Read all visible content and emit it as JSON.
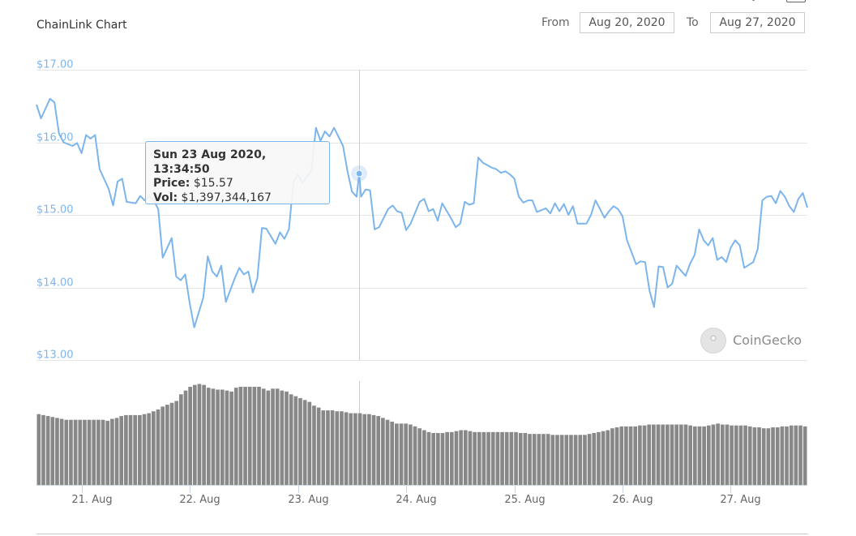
{
  "header": {
    "title": "ChainLink Chart",
    "from_label": "From",
    "from_value": "Aug 20, 2020",
    "to_label": "To",
    "to_value": "Aug 27, 2020"
  },
  "tooltip": {
    "date": "Sun 23 Aug 2020, 13:34:50",
    "price_label": "Price:",
    "price_value": "$15.57",
    "vol_label": "Vol:",
    "vol_value": "$1,397,344,167"
  },
  "watermark": {
    "text": "CoinGecko"
  },
  "colors": {
    "line": "#7cb5ec",
    "volume": "#888888",
    "grid": "#e6e6e6",
    "axis_label": "#7cb5ec"
  },
  "chart_data": {
    "type": "line",
    "title": "ChainLink Chart",
    "x_range": [
      "2020-08-20T14:00",
      "2020-08-27T17:00"
    ],
    "ylim": [
      13,
      17
    ],
    "y_ticks": [
      "$13.00",
      "$14.00",
      "$15.00",
      "$16.00",
      "$17.00"
    ],
    "y_tick_values": [
      13,
      14,
      15,
      16,
      17
    ],
    "x_tick_labels": [
      "21. Aug",
      "22. Aug",
      "23. Aug",
      "24. Aug",
      "25. Aug",
      "26. Aug",
      "27. Aug"
    ],
    "x_tick_dates": [
      "2020-08-21",
      "2020-08-22",
      "2020-08-23",
      "2020-08-24",
      "2020-08-25",
      "2020-08-26",
      "2020-08-27"
    ],
    "grid": true,
    "crosshair_time": "2020-08-23T13:34:50",
    "highlight_price": 15.57,
    "price_series": [
      [
        "2020-08-20T14:00",
        16.52
      ],
      [
        "2020-08-20T15:00",
        16.33
      ],
      [
        "2020-08-20T17:00",
        16.6
      ],
      [
        "2020-08-20T18:00",
        16.55
      ],
      [
        "2020-08-20T19:00",
        16.12
      ],
      [
        "2020-08-20T20:00",
        16.0
      ],
      [
        "2020-08-20T22:00",
        15.95
      ],
      [
        "2020-08-20T23:00",
        15.99
      ],
      [
        "2020-08-21T00:00",
        15.85
      ],
      [
        "2020-08-21T01:00",
        16.1
      ],
      [
        "2020-08-21T02:00",
        16.05
      ],
      [
        "2020-08-21T03:00",
        16.1
      ],
      [
        "2020-08-21T04:00",
        15.63
      ],
      [
        "2020-08-21T06:00",
        15.36
      ],
      [
        "2020-08-21T07:00",
        15.13
      ],
      [
        "2020-08-21T08:00",
        15.46
      ],
      [
        "2020-08-21T09:00",
        15.5
      ],
      [
        "2020-08-21T10:00",
        15.18
      ],
      [
        "2020-08-21T12:00",
        15.16
      ],
      [
        "2020-08-21T13:00",
        15.26
      ],
      [
        "2020-08-21T14:00",
        15.2
      ],
      [
        "2020-08-21T15:00",
        15.26
      ],
      [
        "2020-08-21T16:00",
        15.2
      ],
      [
        "2020-08-21T17:00",
        15.08
      ],
      [
        "2020-08-21T18:00",
        14.41
      ],
      [
        "2020-08-21T20:00",
        14.68
      ],
      [
        "2020-08-21T21:00",
        14.15
      ],
      [
        "2020-08-21T22:00",
        14.1
      ],
      [
        "2020-08-21T23:00",
        14.18
      ],
      [
        "2020-08-22T00:00",
        13.78
      ],
      [
        "2020-08-22T01:00",
        13.45
      ],
      [
        "2020-08-22T03:00",
        13.86
      ],
      [
        "2020-08-22T04:00",
        14.43
      ],
      [
        "2020-08-22T05:00",
        14.22
      ],
      [
        "2020-08-22T06:00",
        14.15
      ],
      [
        "2020-08-22T07:00",
        14.3
      ],
      [
        "2020-08-22T08:00",
        13.8
      ],
      [
        "2020-08-22T10:00",
        14.13
      ],
      [
        "2020-08-22T11:00",
        14.27
      ],
      [
        "2020-08-22T12:00",
        14.18
      ],
      [
        "2020-08-22T13:00",
        14.22
      ],
      [
        "2020-08-22T14:00",
        13.93
      ],
      [
        "2020-08-22T15:00",
        14.13
      ],
      [
        "2020-08-22T16:00",
        14.82
      ],
      [
        "2020-08-22T17:00",
        14.81
      ],
      [
        "2020-08-22T19:00",
        14.6
      ],
      [
        "2020-08-22T20:00",
        14.76
      ],
      [
        "2020-08-22T21:00",
        14.67
      ],
      [
        "2020-08-22T22:00",
        14.8
      ],
      [
        "2020-08-22T23:00",
        15.45
      ],
      [
        "2020-08-23T00:00",
        15.56
      ],
      [
        "2020-08-23T01:00",
        15.44
      ],
      [
        "2020-08-23T03:00",
        15.62
      ],
      [
        "2020-08-23T04:00",
        16.2
      ],
      [
        "2020-08-23T05:00",
        16.02
      ],
      [
        "2020-08-23T06:00",
        16.15
      ],
      [
        "2020-08-23T07:00",
        16.08
      ],
      [
        "2020-08-23T08:00",
        16.2
      ],
      [
        "2020-08-23T10:00",
        15.95
      ],
      [
        "2020-08-23T11:00",
        15.6
      ],
      [
        "2020-08-23T12:00",
        15.32
      ],
      [
        "2020-08-23T13:00",
        15.25
      ],
      [
        "2020-08-23T13:34:50",
        15.57
      ],
      [
        "2020-08-23T14:00",
        15.25
      ],
      [
        "2020-08-23T15:00",
        15.35
      ],
      [
        "2020-08-23T16:00",
        15.34
      ],
      [
        "2020-08-23T17:00",
        14.8
      ],
      [
        "2020-08-23T18:00",
        14.83
      ],
      [
        "2020-08-23T20:00",
        15.08
      ],
      [
        "2020-08-23T21:00",
        15.13
      ],
      [
        "2020-08-23T22:00",
        15.05
      ],
      [
        "2020-08-23T23:00",
        15.03
      ],
      [
        "2020-08-24T00:00",
        14.79
      ],
      [
        "2020-08-24T01:00",
        14.88
      ],
      [
        "2020-08-24T03:00",
        15.18
      ],
      [
        "2020-08-24T04:00",
        15.22
      ],
      [
        "2020-08-24T05:00",
        15.05
      ],
      [
        "2020-08-24T06:00",
        15.08
      ],
      [
        "2020-08-24T07:00",
        14.92
      ],
      [
        "2020-08-24T08:00",
        15.16
      ],
      [
        "2020-08-24T10:00",
        14.95
      ],
      [
        "2020-08-24T11:00",
        14.83
      ],
      [
        "2020-08-24T12:00",
        14.88
      ],
      [
        "2020-08-24T13:00",
        15.18
      ],
      [
        "2020-08-24T14:00",
        15.14
      ],
      [
        "2020-08-24T15:00",
        15.16
      ],
      [
        "2020-08-24T16:00",
        15.79
      ],
      [
        "2020-08-24T17:00",
        15.72
      ],
      [
        "2020-08-24T19:00",
        15.65
      ],
      [
        "2020-08-24T20:00",
        15.63
      ],
      [
        "2020-08-24T21:00",
        15.58
      ],
      [
        "2020-08-24T22:00",
        15.6
      ],
      [
        "2020-08-24T23:00",
        15.56
      ],
      [
        "2020-08-25T00:00",
        15.5
      ],
      [
        "2020-08-25T01:00",
        15.25
      ],
      [
        "2020-08-25T02:00",
        15.17
      ],
      [
        "2020-08-25T03:00",
        15.2
      ],
      [
        "2020-08-25T04:00",
        15.2
      ],
      [
        "2020-08-25T05:00",
        15.04
      ],
      [
        "2020-08-25T07:00",
        15.09
      ],
      [
        "2020-08-25T08:00",
        15.02
      ],
      [
        "2020-08-25T09:00",
        15.16
      ],
      [
        "2020-08-25T10:00",
        15.05
      ],
      [
        "2020-08-25T11:00",
        15.15
      ],
      [
        "2020-08-25T12:00",
        15.0
      ],
      [
        "2020-08-25T13:00",
        15.12
      ],
      [
        "2020-08-25T14:00",
        14.88
      ],
      [
        "2020-08-25T16:00",
        14.88
      ],
      [
        "2020-08-25T17:00",
        15.0
      ],
      [
        "2020-08-25T18:00",
        15.2
      ],
      [
        "2020-08-25T19:00",
        15.08
      ],
      [
        "2020-08-25T20:00",
        14.96
      ],
      [
        "2020-08-25T21:00",
        15.05
      ],
      [
        "2020-08-25T22:00",
        15.12
      ],
      [
        "2020-08-25T23:00",
        15.08
      ],
      [
        "2020-08-26T00:00",
        14.98
      ],
      [
        "2020-08-26T01:00",
        14.65
      ],
      [
        "2020-08-26T03:00",
        14.32
      ],
      [
        "2020-08-26T04:00",
        14.36
      ],
      [
        "2020-08-26T05:00",
        14.35
      ],
      [
        "2020-08-26T06:00",
        13.95
      ],
      [
        "2020-08-26T07:00",
        13.73
      ],
      [
        "2020-08-26T08:00",
        14.29
      ],
      [
        "2020-08-26T09:00",
        14.28
      ],
      [
        "2020-08-26T10:00",
        14.0
      ],
      [
        "2020-08-26T11:00",
        14.05
      ],
      [
        "2020-08-26T12:00",
        14.3
      ],
      [
        "2020-08-26T14:00",
        14.16
      ],
      [
        "2020-08-26T15:00",
        14.33
      ],
      [
        "2020-08-26T16:00",
        14.45
      ],
      [
        "2020-08-26T17:00",
        14.8
      ],
      [
        "2020-08-26T18:00",
        14.65
      ],
      [
        "2020-08-26T19:00",
        14.58
      ],
      [
        "2020-08-26T20:00",
        14.68
      ],
      [
        "2020-08-26T21:00",
        14.38
      ],
      [
        "2020-08-26T22:00",
        14.42
      ],
      [
        "2020-08-26T23:00",
        14.35
      ],
      [
        "2020-08-27T00:00",
        14.55
      ],
      [
        "2020-08-27T01:00",
        14.65
      ],
      [
        "2020-08-27T02:00",
        14.58
      ],
      [
        "2020-08-27T03:00",
        14.27
      ],
      [
        "2020-08-27T05:00",
        14.35
      ],
      [
        "2020-08-27T06:00",
        14.53
      ],
      [
        "2020-08-27T07:00",
        15.2
      ],
      [
        "2020-08-27T08:00",
        15.25
      ],
      [
        "2020-08-27T09:00",
        15.26
      ],
      [
        "2020-08-27T10:00",
        15.16
      ],
      [
        "2020-08-27T11:00",
        15.33
      ],
      [
        "2020-08-27T12:00",
        15.25
      ],
      [
        "2020-08-27T13:00",
        15.12
      ],
      [
        "2020-08-27T14:00",
        15.04
      ],
      [
        "2020-08-27T15:00",
        15.22
      ],
      [
        "2020-08-27T16:00",
        15.3
      ],
      [
        "2020-08-27T17:00",
        15.1
      ]
    ],
    "volume_relative": [
      0.75,
      0.74,
      0.73,
      0.72,
      0.71,
      0.7,
      0.69,
      0.69,
      0.69,
      0.69,
      0.69,
      0.69,
      0.69,
      0.69,
      0.69,
      0.68,
      0.7,
      0.71,
      0.73,
      0.74,
      0.74,
      0.74,
      0.74,
      0.75,
      0.76,
      0.78,
      0.8,
      0.83,
      0.85,
      0.87,
      0.89,
      0.96,
      1.0,
      1.04,
      1.06,
      1.07,
      1.06,
      1.03,
      1.02,
      1.01,
      1.01,
      1.0,
      0.99,
      1.03,
      1.04,
      1.04,
      1.04,
      1.04,
      1.04,
      1.02,
      1.0,
      1.02,
      1.02,
      1.0,
      0.99,
      0.96,
      0.94,
      0.92,
      0.9,
      0.88,
      0.84,
      0.82,
      0.79,
      0.79,
      0.79,
      0.78,
      0.78,
      0.77,
      0.76,
      0.76,
      0.76,
      0.75,
      0.75,
      0.74,
      0.73,
      0.71,
      0.69,
      0.67,
      0.65,
      0.65,
      0.65,
      0.64,
      0.62,
      0.6,
      0.58,
      0.56,
      0.55,
      0.55,
      0.55,
      0.56,
      0.56,
      0.57,
      0.58,
      0.58,
      0.57,
      0.56,
      0.56,
      0.56,
      0.56,
      0.56,
      0.56,
      0.56,
      0.56,
      0.56,
      0.56,
      0.55,
      0.55,
      0.54,
      0.54,
      0.54,
      0.54,
      0.54,
      0.53,
      0.53,
      0.53,
      0.53,
      0.53,
      0.53,
      0.53,
      0.53,
      0.54,
      0.55,
      0.56,
      0.57,
      0.58,
      0.6,
      0.61,
      0.62,
      0.62,
      0.62,
      0.62,
      0.63,
      0.63,
      0.64,
      0.64,
      0.64,
      0.64,
      0.64,
      0.64,
      0.64,
      0.64,
      0.64,
      0.63,
      0.62,
      0.62,
      0.62,
      0.63,
      0.64,
      0.65,
      0.64,
      0.64,
      0.63,
      0.63,
      0.63,
      0.63,
      0.62,
      0.61,
      0.61,
      0.6,
      0.6,
      0.61,
      0.61,
      0.62,
      0.62,
      0.63,
      0.63,
      0.63,
      0.62
    ]
  }
}
